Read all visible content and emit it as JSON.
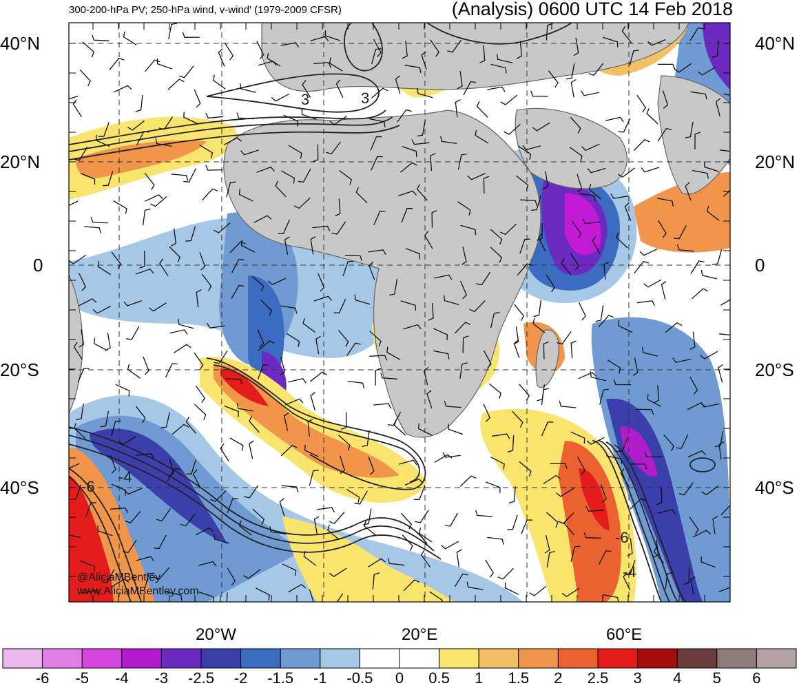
{
  "header": {
    "left": "300-200-hPa PV; 250-hPa wind, v-wind' (1979-2009 CFSR)",
    "right": "(Analysis) 0600 UTC 14 Feb 2018"
  },
  "lat_labels": [
    "40°N",
    "20°N",
    "0",
    "20°S",
    "40°S"
  ],
  "lon_labels": [
    "20°W",
    "20°E",
    "60°E"
  ],
  "contour_labels": [
    "3",
    "3",
    "-6",
    "-4",
    "-6",
    "-4"
  ],
  "credits": [
    "@AliciaMBentley",
    "www.AliciaMBentley.com"
  ],
  "colorbar": {
    "ticks": [
      "-6",
      "-5",
      "-4",
      "-3",
      "-2.5",
      "-2",
      "-1.5",
      "-1",
      "-0.5",
      "0",
      "0.5",
      "1",
      "1.5",
      "2",
      "2.5",
      "3",
      "4",
      "5",
      "6"
    ],
    "colors": [
      "#ebb8eb",
      "#e47fe8",
      "#d645e0",
      "#b31ccc",
      "#6c2bc0",
      "#3a3fab",
      "#3c6cc1",
      "#6f9bd2",
      "#a6c8e6",
      "#ffffff",
      "#ffffff",
      "#f9e46e",
      "#f4c064",
      "#f0954a",
      "#ec6130",
      "#e41c1c",
      "#a50d0d",
      "#6b3c3c",
      "#8c7c7c",
      "#b0a2a2"
    ]
  },
  "colors": {
    "land": "#c8c8c8",
    "coast": "#666666",
    "contour": "#222222"
  }
}
